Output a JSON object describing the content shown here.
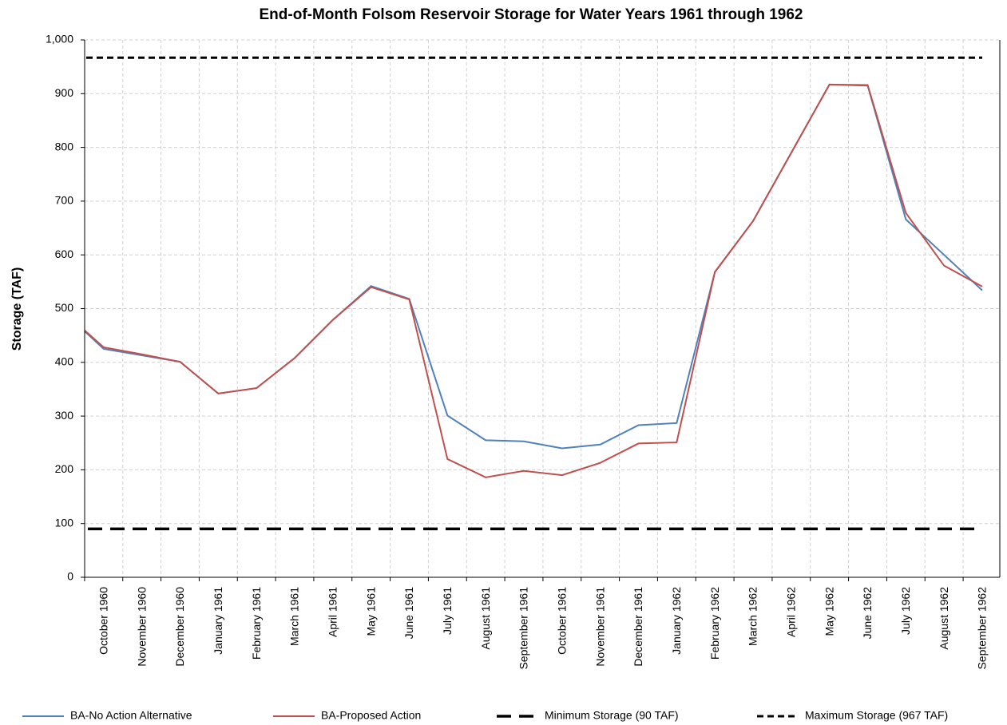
{
  "chart_data": {
    "type": "line",
    "title": "End-of-Month Folsom Reservoir Storage for Water Years 1961 through 1962",
    "y_label": "Storage (TAF)",
    "categories": [
      null,
      "October 1960",
      "November 1960",
      "December 1960",
      "January 1961",
      "February 1961",
      "March 1961",
      "April 1961",
      "May 1961",
      "June 1961",
      "July 1961",
      "August 1961",
      "September 1961",
      "October 1961",
      "November 1961",
      "December 1961",
      "January 1962",
      "February 1962",
      "March 1962",
      "April 1962",
      "May 1962",
      "June 1962",
      "July 1962",
      "August 1962",
      "September 1962"
    ],
    "series": [
      {
        "name": "BA-No Action Alternative",
        "color": "#4f81bd",
        "dash": "solid",
        "values": [
          491,
          425,
          413,
          401,
          342,
          352,
          408,
          479,
          542,
          518,
          301,
          255,
          253,
          240,
          247,
          283,
          287,
          568,
          663,
          790,
          917,
          915,
          666,
          600,
          534
        ]
      },
      {
        "name": "BA-Proposed Action",
        "color": "#c0504d",
        "dash": "solid",
        "values": [
          491,
          428,
          415,
          401,
          342,
          352,
          408,
          479,
          540,
          517,
          220,
          186,
          198,
          190,
          213,
          249,
          251,
          568,
          663,
          790,
          917,
          916,
          678,
          580,
          541
        ]
      },
      {
        "name": "Minimum Storage (90 TAF)",
        "color": "#000000",
        "dash": "long",
        "values": [
          90,
          90,
          90,
          90,
          90,
          90,
          90,
          90,
          90,
          90,
          90,
          90,
          90,
          90,
          90,
          90,
          90,
          90,
          90,
          90,
          90,
          90,
          90,
          90,
          90
        ]
      },
      {
        "name": "Maximum Storage (967 TAF)",
        "color": "#000000",
        "dash": "short",
        "values": [
          967,
          967,
          967,
          967,
          967,
          967,
          967,
          967,
          967,
          967,
          967,
          967,
          967,
          967,
          967,
          967,
          967,
          967,
          967,
          967,
          967,
          967,
          967,
          967,
          967
        ]
      }
    ],
    "ylim": [
      0,
      1000
    ],
    "yticks": [
      0,
      100,
      200,
      300,
      400,
      500,
      600,
      700,
      800,
      900,
      {
        "value": 1000,
        "label": "1,000"
      }
    ],
    "grid": true,
    "legend": "bottom"
  }
}
